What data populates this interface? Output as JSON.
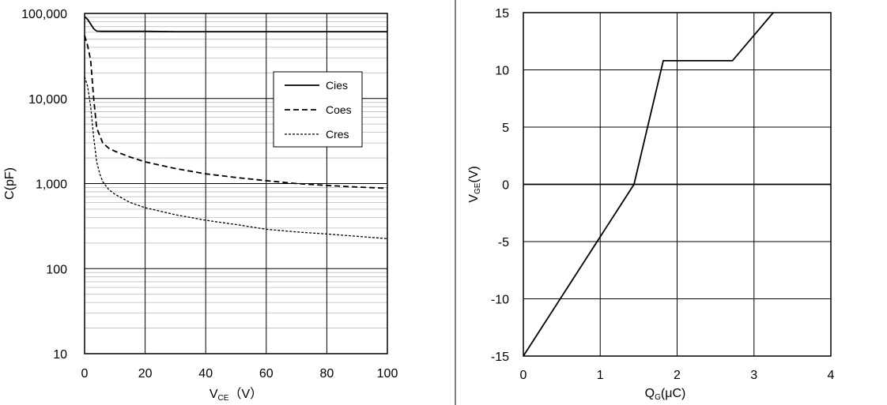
{
  "chart_data": [
    {
      "type": "line",
      "xlabel": "V",
      "xlabel_sub": "CE",
      "xlabel_unit": "（V）",
      "ylabel": "C(pF)",
      "xlim": [
        0,
        100
      ],
      "ylim": [
        10,
        100000
      ],
      "yscale": "log",
      "xticks": [
        0,
        20,
        40,
        60,
        80,
        100
      ],
      "xtick_labels": [
        "0",
        "20",
        "40",
        "60",
        "80",
        "100"
      ],
      "yticks": [
        10,
        100,
        1000,
        10000,
        100000
      ],
      "ytick_labels": [
        "10",
        "100",
        "1,000",
        "10,000",
        "100,000"
      ],
      "grid": true,
      "legend_position": "upper-right",
      "series": [
        {
          "name": "Cies",
          "style": "solid",
          "x": [
            0,
            1,
            2,
            3,
            4,
            6,
            10,
            20,
            30,
            40,
            60,
            80,
            100
          ],
          "y": [
            92000,
            85000,
            75000,
            66000,
            62000,
            61500,
            61500,
            61500,
            61000,
            61000,
            61000,
            61000,
            61000
          ]
        },
        {
          "name": "Coes",
          "style": "dashed",
          "x": [
            0,
            1,
            2,
            3,
            4,
            6,
            8,
            10,
            15,
            20,
            30,
            40,
            50,
            60,
            70,
            80,
            90,
            100
          ],
          "y": [
            55000,
            42000,
            28000,
            10000,
            4500,
            3000,
            2600,
            2400,
            2050,
            1800,
            1500,
            1300,
            1180,
            1080,
            1000,
            950,
            910,
            880
          ]
        },
        {
          "name": "Cres",
          "style": "dotted",
          "x": [
            0,
            1,
            2,
            3,
            4,
            5,
            6,
            8,
            10,
            15,
            20,
            30,
            40,
            50,
            60,
            70,
            80,
            90,
            100
          ],
          "y": [
            18000,
            14000,
            8000,
            3500,
            1800,
            1300,
            1050,
            850,
            750,
            600,
            520,
            430,
            370,
            330,
            290,
            270,
            255,
            240,
            225
          ]
        }
      ]
    },
    {
      "type": "line",
      "xlabel": "Q",
      "xlabel_sub": "G",
      "xlabel_unit": "(μC)",
      "ylabel": "V",
      "ylabel_sub": "GE",
      "ylabel_unit": "(V)",
      "xlim": [
        0,
        4
      ],
      "ylim": [
        -15,
        15
      ],
      "xticks": [
        0,
        1,
        2,
        3,
        4
      ],
      "xtick_labels": [
        "0",
        "1",
        "2",
        "3",
        "4"
      ],
      "yticks": [
        -15,
        -10,
        -5,
        0,
        5,
        10,
        15
      ],
      "ytick_labels": [
        "-15",
        "-10",
        "-5",
        "0",
        "5",
        "10",
        "15"
      ],
      "grid": true,
      "series": [
        {
          "style": "solid",
          "x": [
            0,
            1.44,
            1.82,
            2.72,
            3.25
          ],
          "y": [
            -15,
            0,
            10.8,
            10.8,
            15
          ]
        }
      ]
    }
  ]
}
